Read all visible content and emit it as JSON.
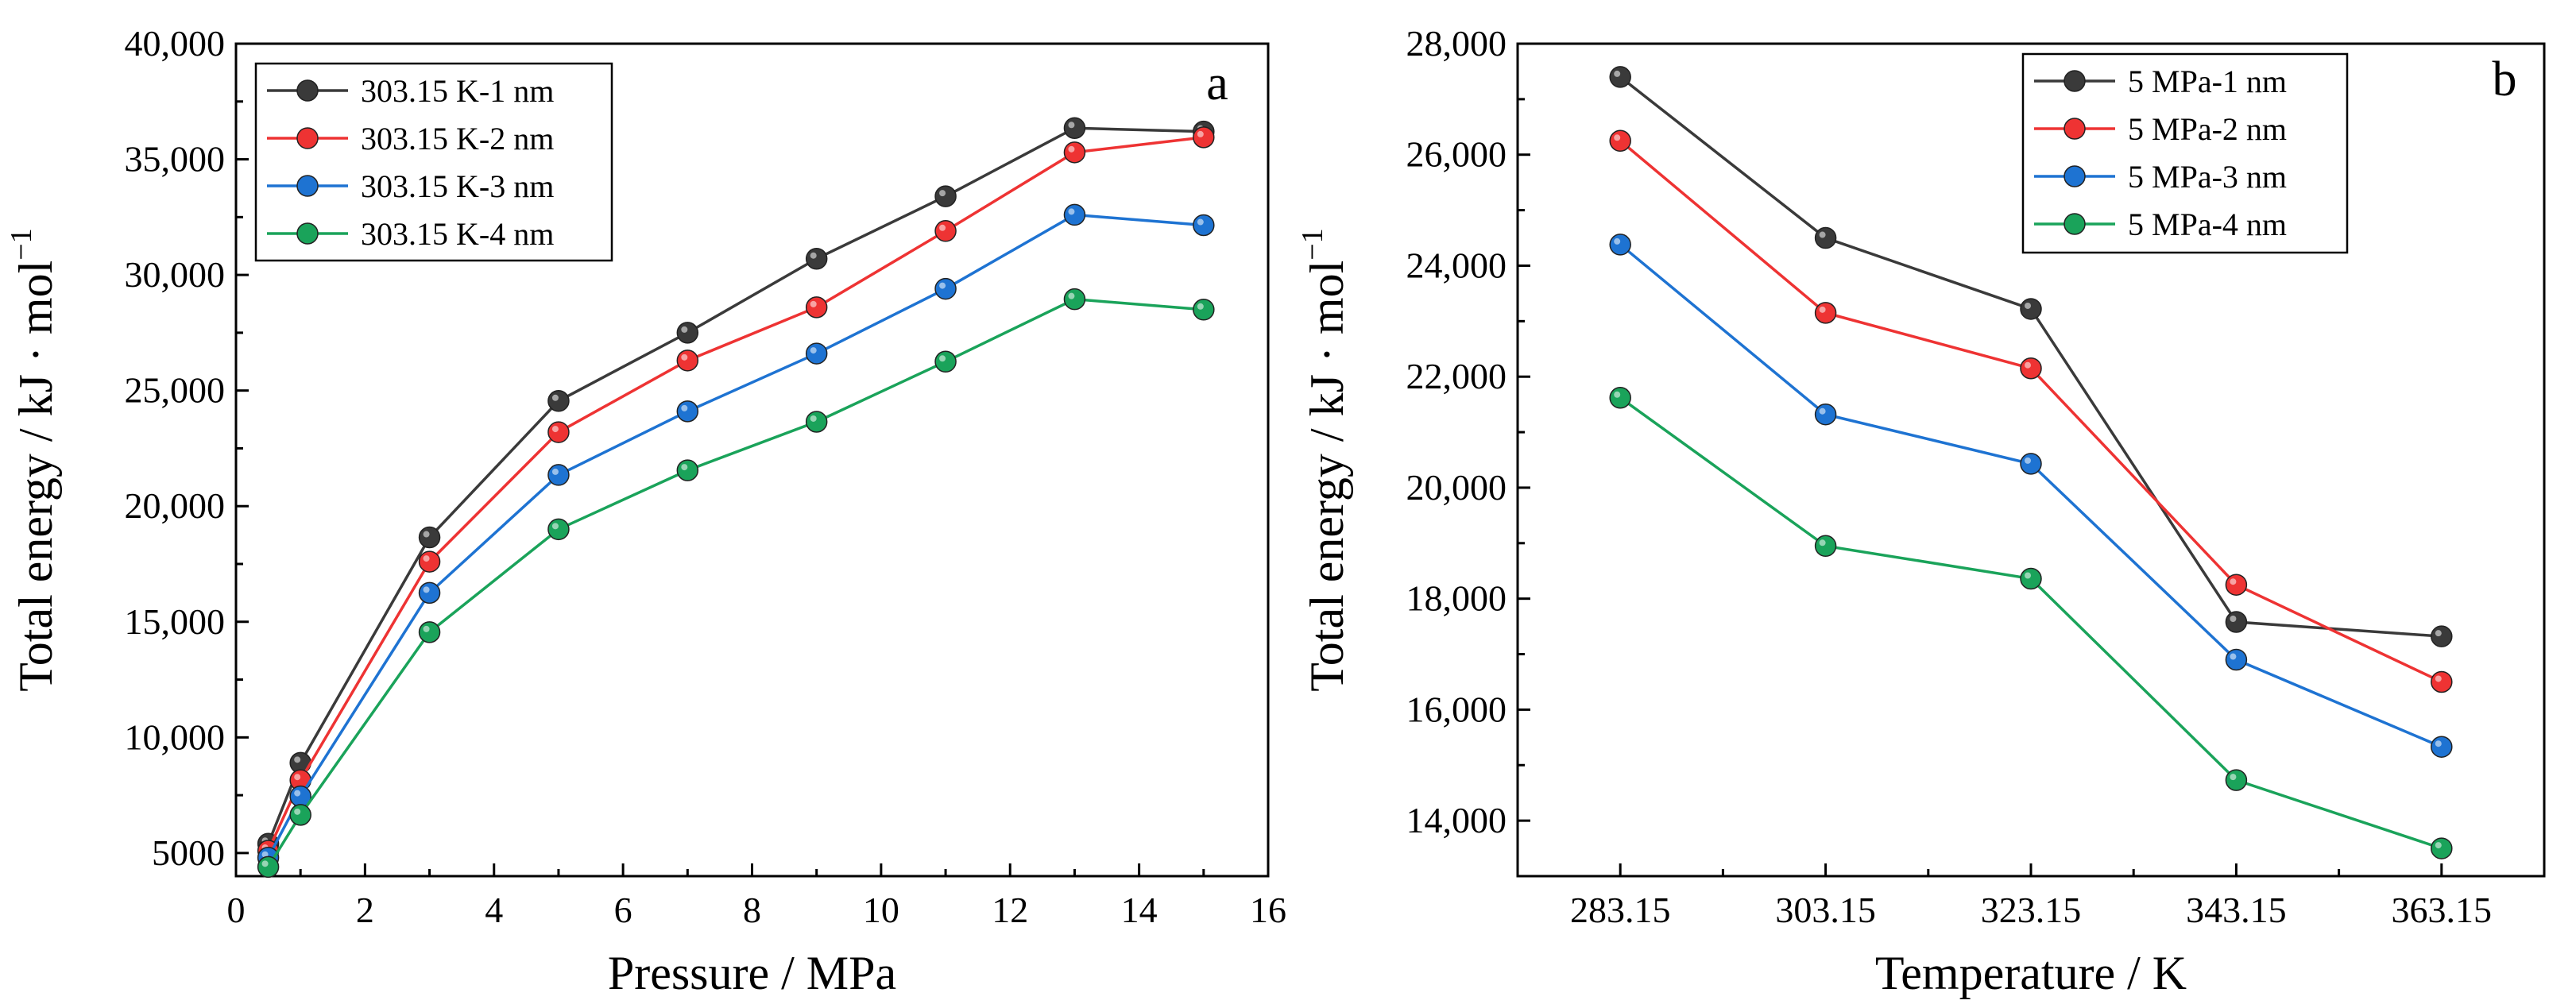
{
  "chart_data": [
    {
      "type": "line",
      "panel_label": "a",
      "xlabel": "Pressure / MPa",
      "ylabel": "Total energy / kJ · mol",
      "ylabel_sup": "−1",
      "xlim": [
        0,
        16
      ],
      "ylim": [
        4000,
        40000
      ],
      "xticks": [
        0,
        2,
        4,
        6,
        8,
        10,
        12,
        14,
        16
      ],
      "xtick_labels": [
        "0",
        "2",
        "4",
        "6",
        "8",
        "10",
        "12",
        "14",
        "16"
      ],
      "yticks": [
        5000,
        10000,
        15000,
        20000,
        25000,
        30000,
        35000,
        40000
      ],
      "ytick_labels": [
        "5000",
        "10,000",
        "15,000",
        "20,000",
        "25,000",
        "30,000",
        "35,000",
        "40,000"
      ],
      "x": [
        0.5,
        1,
        3,
        5,
        7,
        9,
        11,
        13,
        15
      ],
      "legend_position": "top-left",
      "series": [
        {
          "name": "303.15 K-1 nm",
          "color": "#3a3a3a",
          "values": [
            5400,
            8900,
            18650,
            24550,
            27500,
            30700,
            33400,
            36350,
            36200
          ]
        },
        {
          "name": "303.15 K-2 nm",
          "color": "#ee3333",
          "values": [
            5100,
            8150,
            17600,
            23200,
            26300,
            28600,
            31900,
            35300,
            35950
          ]
        },
        {
          "name": "303.15 K-3 nm",
          "color": "#1e73d2",
          "values": [
            4800,
            7450,
            16250,
            21350,
            24100,
            26600,
            29400,
            32600,
            32150
          ]
        },
        {
          "name": "303.15 K-4 nm",
          "color": "#1aa35a",
          "values": [
            4400,
            6650,
            14550,
            19000,
            21550,
            23650,
            26250,
            28950,
            28500
          ]
        }
      ]
    },
    {
      "type": "line",
      "panel_label": "b",
      "xlabel": "Temperature / K",
      "ylabel": "Total energy / kJ · mol",
      "ylabel_sup": "−1",
      "ylim": [
        13000,
        28000
      ],
      "categories": [
        "283.15",
        "303.15",
        "323.15",
        "343.15",
        "363.15"
      ],
      "yticks": [
        14000,
        16000,
        18000,
        20000,
        22000,
        24000,
        26000,
        28000
      ],
      "ytick_labels": [
        "14,000",
        "16,000",
        "18,000",
        "20,000",
        "22,000",
        "24,000",
        "26,000",
        "28,000"
      ],
      "legend_position": "top-center",
      "series": [
        {
          "name": "5 MPa-1 nm",
          "color": "#3a3a3a",
          "values": [
            27400,
            24500,
            23220,
            17580,
            17320
          ]
        },
        {
          "name": "5 MPa-2 nm",
          "color": "#ee3333",
          "values": [
            26250,
            23150,
            22150,
            18250,
            16500
          ]
        },
        {
          "name": "5 MPa-3 nm",
          "color": "#1e73d2",
          "values": [
            24380,
            21320,
            20430,
            16900,
            15330
          ]
        },
        {
          "name": "5 MPa-4 nm",
          "color": "#1aa35a",
          "values": [
            21620,
            18950,
            18360,
            14730,
            13500
          ]
        }
      ]
    }
  ]
}
